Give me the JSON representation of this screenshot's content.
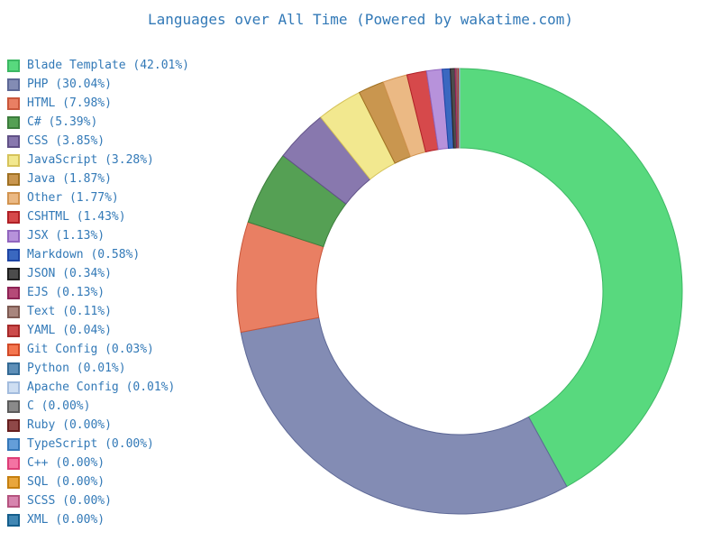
{
  "chart_data": {
    "type": "pie",
    "subtype": "donut",
    "title": "Languages over All Time (Powered by wakatime.com)",
    "unit": "%",
    "start_angle": "top",
    "direction": "clockwise",
    "legend_position": "left",
    "inner_radius_ratio": 0.644,
    "legend_label_format": "{label} ({value}%)",
    "text_color": "#3279b7",
    "background_color": "#ffffff",
    "series": [
      {
        "label": "Blade Template",
        "value": 42.01,
        "color": "#58d97e",
        "edge_color": "#3cb863"
      },
      {
        "label": "PHP",
        "value": 30.04,
        "color": "#838cb4",
        "edge_color": "#5d6896"
      },
      {
        "label": "HTML",
        "value": 7.98,
        "color": "#e97f63",
        "edge_color": "#c9563a"
      },
      {
        "label": "C#",
        "value": 5.39,
        "color": "#55a054",
        "edge_color": "#3c7d3c"
      },
      {
        "label": "CSS",
        "value": 3.85,
        "color": "#8878ae",
        "edge_color": "#615187"
      },
      {
        "label": "JavaScript",
        "value": 3.28,
        "color": "#f2e88f",
        "edge_color": "#d6c35b"
      },
      {
        "label": "Java",
        "value": 1.87,
        "color": "#c9964f",
        "edge_color": "#a07122"
      },
      {
        "label": "Other",
        "value": 1.77,
        "color": "#ebb984",
        "edge_color": "#d29450"
      },
      {
        "label": "CSHTML",
        "value": 1.43,
        "color": "#d6494b",
        "edge_color": "#b02026"
      },
      {
        "label": "JSX",
        "value": 1.13,
        "color": "#b792db",
        "edge_color": "#9165be"
      },
      {
        "label": "Markdown",
        "value": 0.58,
        "color": "#3a68c0",
        "edge_color": "#1e45a5"
      },
      {
        "label": "JSON",
        "value": 0.34,
        "color": "#4c4c4c",
        "edge_color": "#1f1f1f"
      },
      {
        "label": "EJS",
        "value": 0.13,
        "color": "#b54a78",
        "edge_color": "#8e2355"
      },
      {
        "label": "Text",
        "value": 0.11,
        "color": "#a8857d",
        "edge_color": "#7d5a52"
      },
      {
        "label": "YAML",
        "value": 0.04,
        "color": "#cc4b4b",
        "edge_color": "#a62a2a"
      },
      {
        "label": "Git Config",
        "value": 0.03,
        "color": "#f4764f",
        "edge_color": "#d14a28"
      },
      {
        "label": "Python",
        "value": 0.01,
        "color": "#5e8fb8",
        "edge_color": "#336a95"
      },
      {
        "label": "Apache Config",
        "value": 0.01,
        "color": "#cedef2",
        "edge_color": "#a3bcde"
      },
      {
        "label": "C",
        "value": 0.0,
        "color": "#8a8a8a",
        "edge_color": "#5c5c5c"
      },
      {
        "label": "Ruby",
        "value": 0.0,
        "color": "#8f4848",
        "edge_color": "#661f1f"
      },
      {
        "label": "TypeScript",
        "value": 0.0,
        "color": "#649ed9",
        "edge_color": "#3577b8"
      },
      {
        "label": "C++",
        "value": 0.0,
        "color": "#f473a3",
        "edge_color": "#dd3d77"
      },
      {
        "label": "SQL",
        "value": 0.0,
        "color": "#e9a63c",
        "edge_color": "#c57f0f"
      },
      {
        "label": "SCSS",
        "value": 0.0,
        "color": "#d784ae",
        "edge_color": "#b5537f"
      },
      {
        "label": "XML",
        "value": 0.0,
        "color": "#4187b4",
        "edge_color": "#145e8c"
      }
    ]
  }
}
